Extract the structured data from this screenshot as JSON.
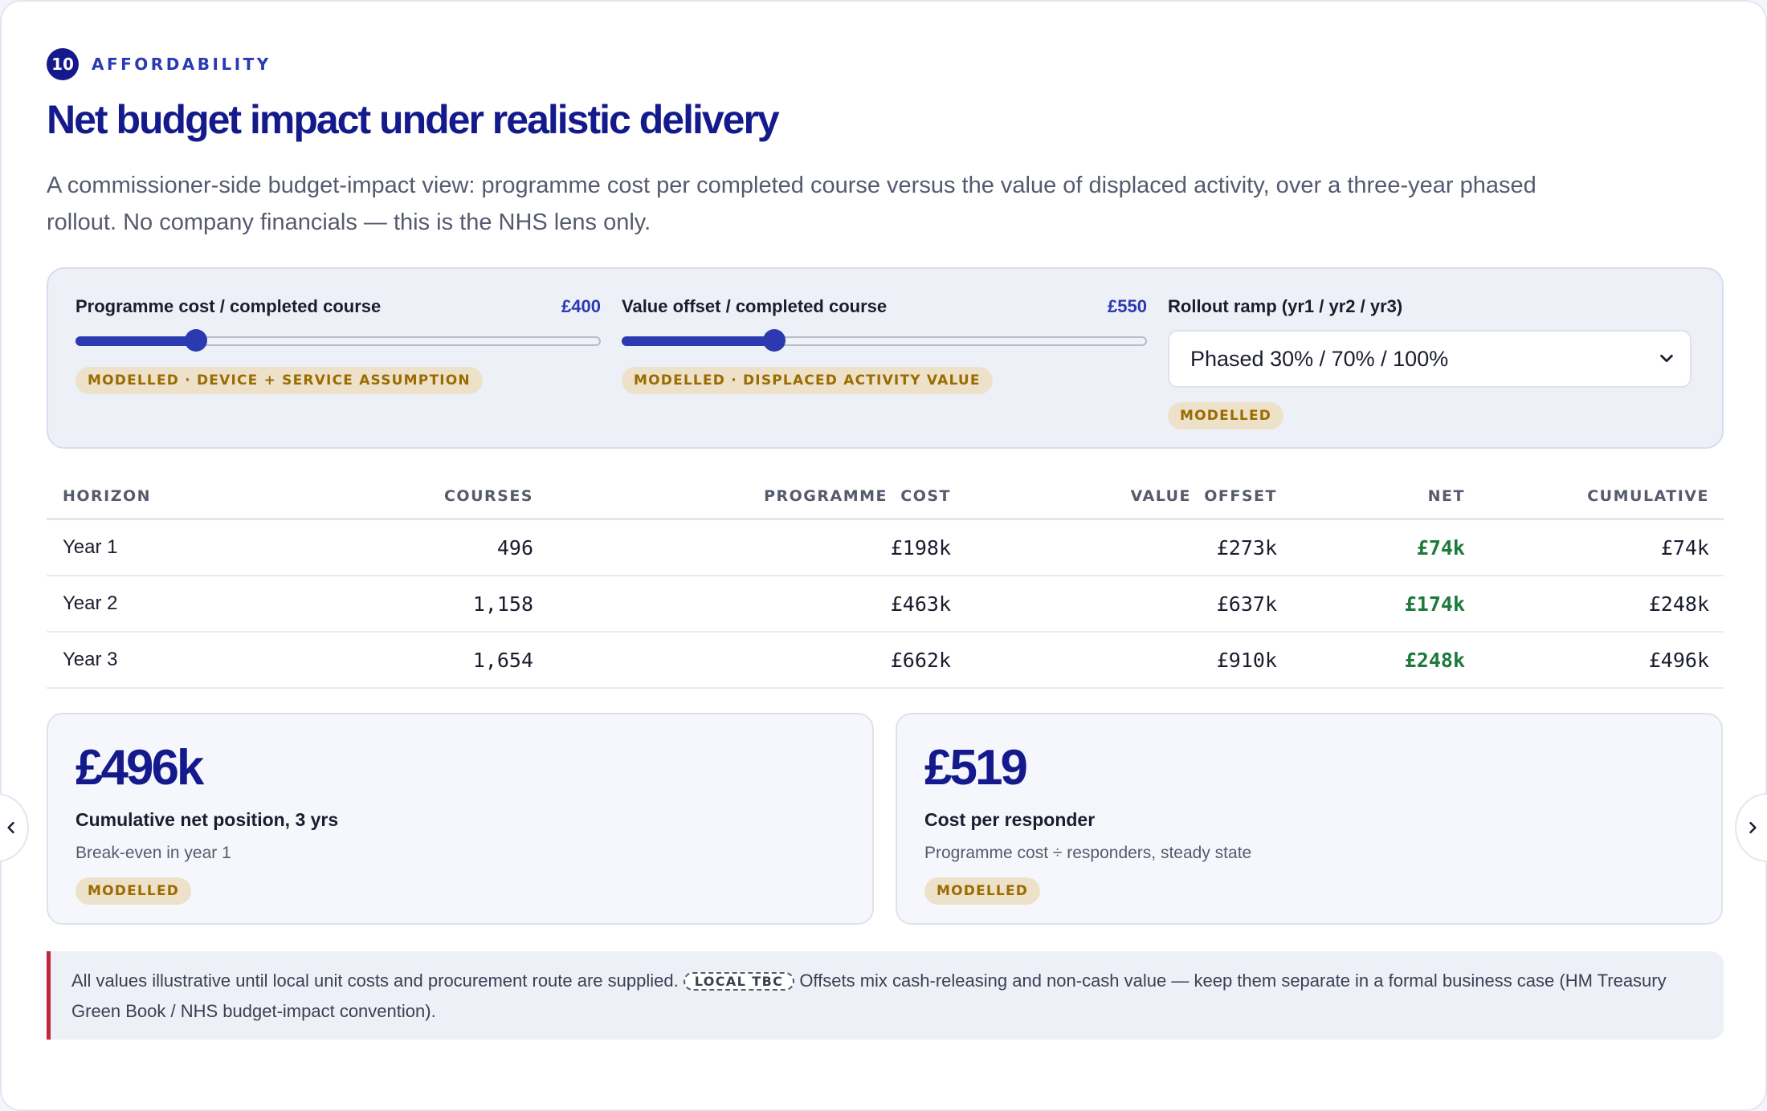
{
  "section": {
    "step": "10",
    "eyebrow": "AFFORDABILITY",
    "title": "Net budget impact under realistic delivery",
    "lede": "A commissioner-side budget-impact view: programme cost per completed course versus the value of displaced activity, over a three-year phased rollout. No company financials — this is the NHS lens only."
  },
  "controls": {
    "programme_cost": {
      "label": "Programme cost / completed course",
      "value": "£400",
      "slider_fraction": 0.23,
      "tag": "MODELLED · DEVICE + SERVICE ASSUMPTION"
    },
    "value_offset": {
      "label": "Value offset / completed course",
      "value": "£550",
      "slider_fraction": 0.29,
      "tag": "MODELLED · DISPLACED ACTIVITY VALUE"
    },
    "rollout": {
      "label": "Rollout ramp (yr1 / yr2 / yr3)",
      "selected": "Phased 30% / 70% / 100%",
      "tag": "MODELLED"
    }
  },
  "table": {
    "headers": {
      "horizon": "HORIZON",
      "courses": "COURSES",
      "programme_cost": "PROGRAMME  COST",
      "value_offset": "VALUE  OFFSET",
      "net": "NET",
      "cumulative": "CUMULATIVE"
    },
    "rows": [
      {
        "horizon": "Year 1",
        "courses": "496",
        "programme_cost": "£198k",
        "value_offset": "£273k",
        "net": "£74k",
        "cumulative": "£74k"
      },
      {
        "horizon": "Year 2",
        "courses": "1,158",
        "programme_cost": "£463k",
        "value_offset": "£637k",
        "net": "£174k",
        "cumulative": "£248k"
      },
      {
        "horizon": "Year 3",
        "courses": "1,654",
        "programme_cost": "£662k",
        "value_offset": "£910k",
        "net": "£248k",
        "cumulative": "£496k"
      }
    ]
  },
  "kpis": [
    {
      "value": "£496k",
      "label": "Cumulative net position, 3 yrs",
      "sub": "Break-even in year 1",
      "tag": "MODELLED"
    },
    {
      "value": "£519",
      "label": "Cost per responder",
      "sub": "Programme cost ÷ responders, steady state",
      "tag": "MODELLED"
    }
  ],
  "note": {
    "before": "All values illustrative until local unit costs and procurement route are supplied.",
    "chip": "LOCAL TBC",
    "after": "Offsets mix cash-releasing and non-cash value — keep them separate in a formal business case (HM Treasury Green Book / NHS budget-impact convention)."
  },
  "colors": {
    "brand": "#141a8c",
    "accent": "#2b3ab0",
    "positive": "#1e7a3c",
    "modelled_tag_bg": "#ede2c9",
    "modelled_tag_text": "#9a6b00",
    "warning_rule": "#c0283c"
  },
  "icons": {
    "select_arrow": "chevron-down-icon",
    "prev": "chevron-left-icon",
    "next": "chevron-right-icon"
  }
}
